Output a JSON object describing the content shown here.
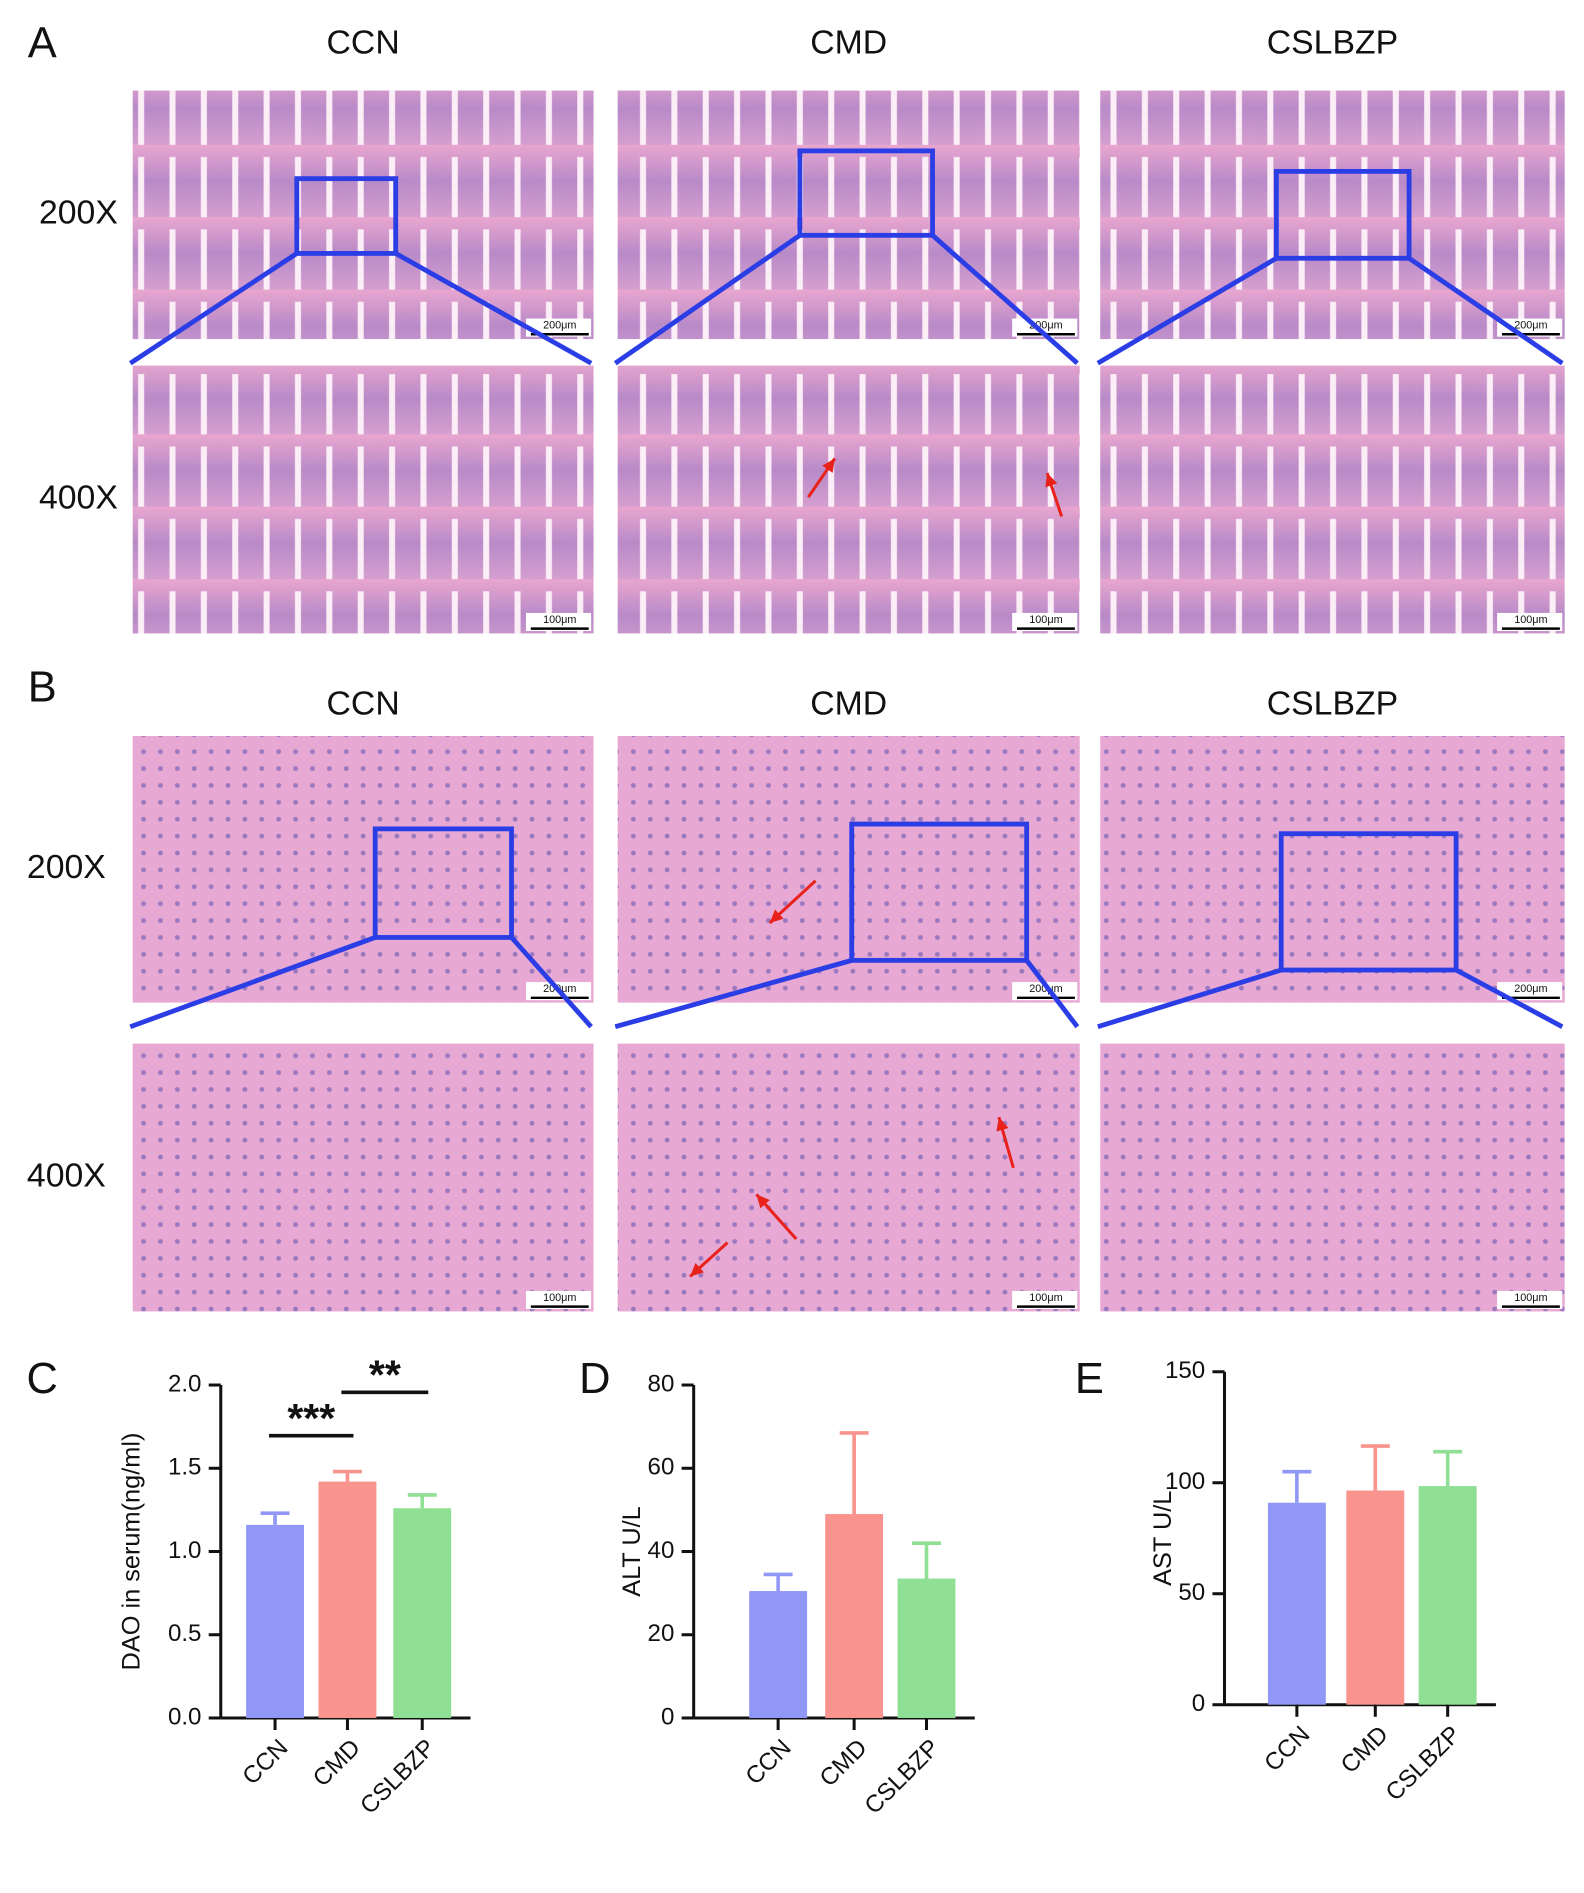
{
  "panel_labels": [
    "A",
    "B",
    "C",
    "D",
    "E"
  ],
  "histology": [
    {
      "columns": [
        "CCN",
        "CMD",
        "CSLBZP"
      ],
      "rows": [
        "200X",
        "400X"
      ],
      "scale_bars": [
        "200μm",
        "100μm"
      ]
    },
    {
      "columns": [
        "CCN",
        "CMD",
        "CSLBZP"
      ],
      "rows": [
        "200X",
        "400X"
      ],
      "scale_bars": [
        "200μm",
        "100μm"
      ]
    }
  ],
  "chart_data": [
    {
      "type": "bar",
      "ylabel": "DAO in serum(ng/ml)",
      "categories": [
        "CCN",
        "CMD",
        "CSLBZP"
      ],
      "values": [
        1.16,
        1.42,
        1.26
      ],
      "errors": [
        0.07,
        0.06,
        0.08
      ],
      "colors": [
        "#9197f7",
        "#f8948d",
        "#8fdf94"
      ],
      "ylim": [
        0,
        2
      ],
      "yticks": [
        {
          "value": 0,
          "label": "0.0"
        },
        0.5,
        {
          "value": 1,
          "label": "1.0"
        },
        1.5,
        {
          "value": 2,
          "label": "2.0"
        }
      ],
      "significance": [
        "***",
        "**"
      ]
    },
    {
      "type": "bar",
      "ylabel": "ALT U/L",
      "categories": [
        "CCN",
        "CMD",
        "CSLBZP"
      ],
      "values": [
        30.5,
        49,
        33.5
      ],
      "errors": [
        4,
        19.5,
        8.5
      ],
      "colors": [
        "#9197f7",
        "#f8948d",
        "#8fdf94"
      ],
      "ylim": [
        0,
        80
      ],
      "yticks": [
        0,
        20,
        40,
        60,
        80
      ]
    },
    {
      "type": "bar",
      "ylabel": "AST U/L",
      "categories": [
        "CCN",
        "CMD",
        "CSLBZP"
      ],
      "values": [
        91,
        96.5,
        98.5
      ],
      "errors": [
        14,
        20,
        15.5
      ],
      "colors": [
        "#9197f7",
        "#f8948d",
        "#8fdf94"
      ],
      "ylim": [
        0,
        150
      ],
      "yticks": [
        0,
        50,
        100,
        150
      ]
    }
  ]
}
